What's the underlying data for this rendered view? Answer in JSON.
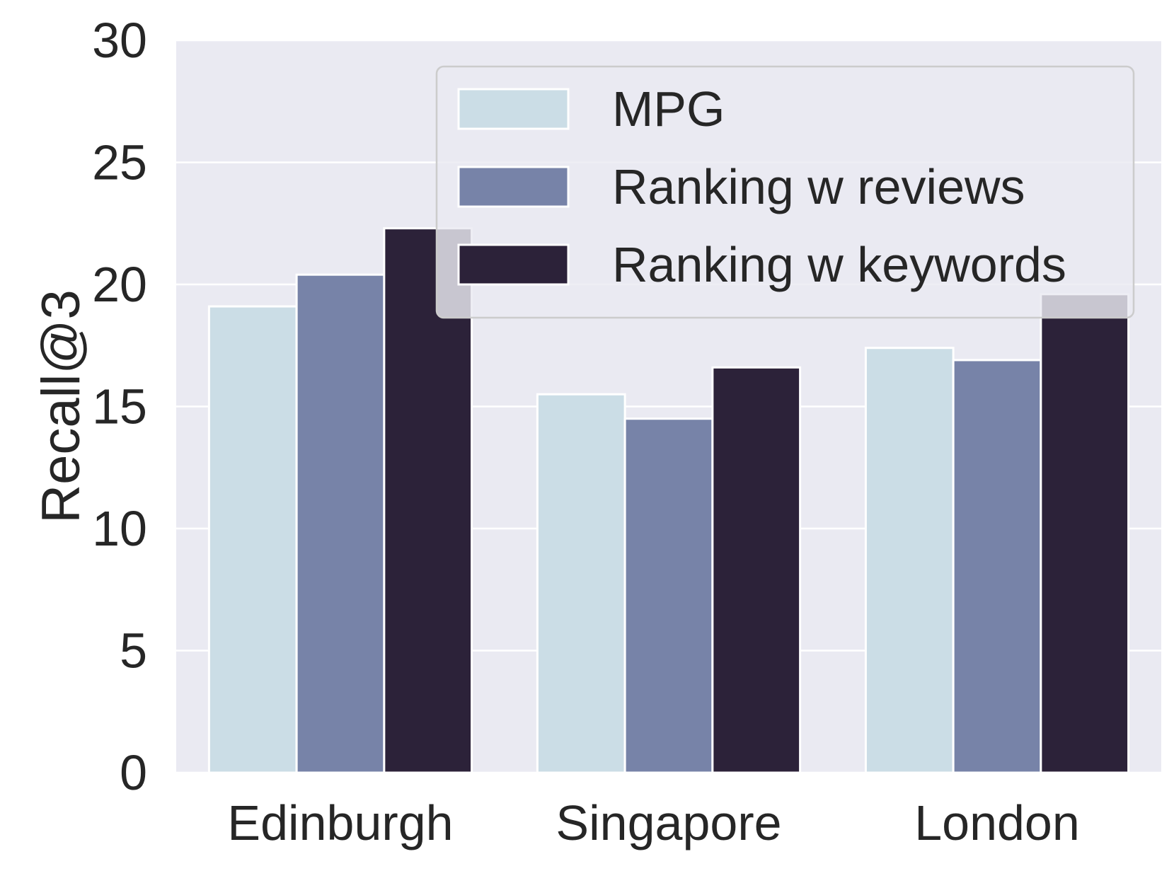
{
  "chart_data": {
    "type": "bar",
    "title": "",
    "xlabel": "",
    "ylabel": "Recall@3",
    "ylim": [
      0,
      30
    ],
    "yticks": [
      0,
      5,
      10,
      15,
      20,
      25,
      30
    ],
    "ytick_labels": [
      "0",
      "5",
      "10",
      "15",
      "20",
      "25",
      "30"
    ],
    "grid": true,
    "legend_position": "top-right",
    "categories": [
      "Edinburgh",
      "Singapore",
      "London"
    ],
    "series": [
      {
        "name": "MPG",
        "values": [
          19.1,
          15.5,
          17.4
        ],
        "color": "#cbdde6"
      },
      {
        "name": "Ranking w reviews",
        "values": [
          20.4,
          14.5,
          16.9
        ],
        "color": "#7783a8"
      },
      {
        "name": "Ranking w keywords",
        "values": [
          22.3,
          16.6,
          19.6
        ],
        "color": "#2c2239"
      }
    ]
  },
  "style": {
    "plot_background": "#eaeaf2",
    "grid_color": "#ffffff",
    "text_color": "#262626",
    "bar_edge_color": "#ffffff"
  }
}
